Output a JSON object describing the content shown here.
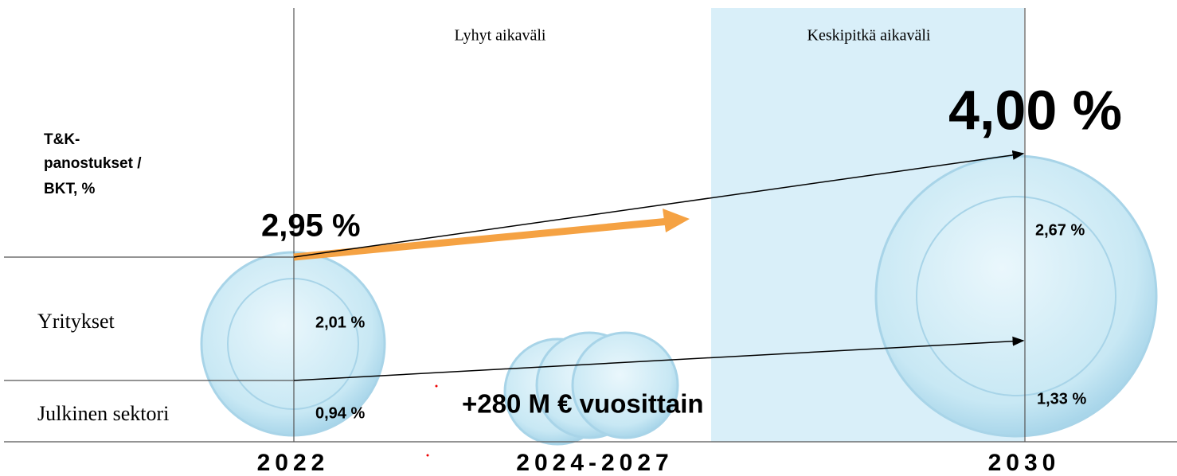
{
  "header": {
    "short_term": "Lyhyt aikaväli",
    "medium_term": "Keskipitkä aikaväli"
  },
  "indicator_label": {
    "line1": "T&K-",
    "line2": "panostukset /",
    "line3": "BKT, %"
  },
  "rows": [
    {
      "label": "Yritykset",
      "value_2022": "2,01 %",
      "value_2030": "2,67 %"
    },
    {
      "label": "Julkinen sektori",
      "value_2022": "0,94 %",
      "value_2030": "1,33 %"
    }
  ],
  "totals": {
    "value_2022": "2,95 %",
    "value_2030": "4,00 %"
  },
  "annotation": "+280 M € vuosittain",
  "years": [
    "2022",
    "2024-2027",
    "2030"
  ]
}
